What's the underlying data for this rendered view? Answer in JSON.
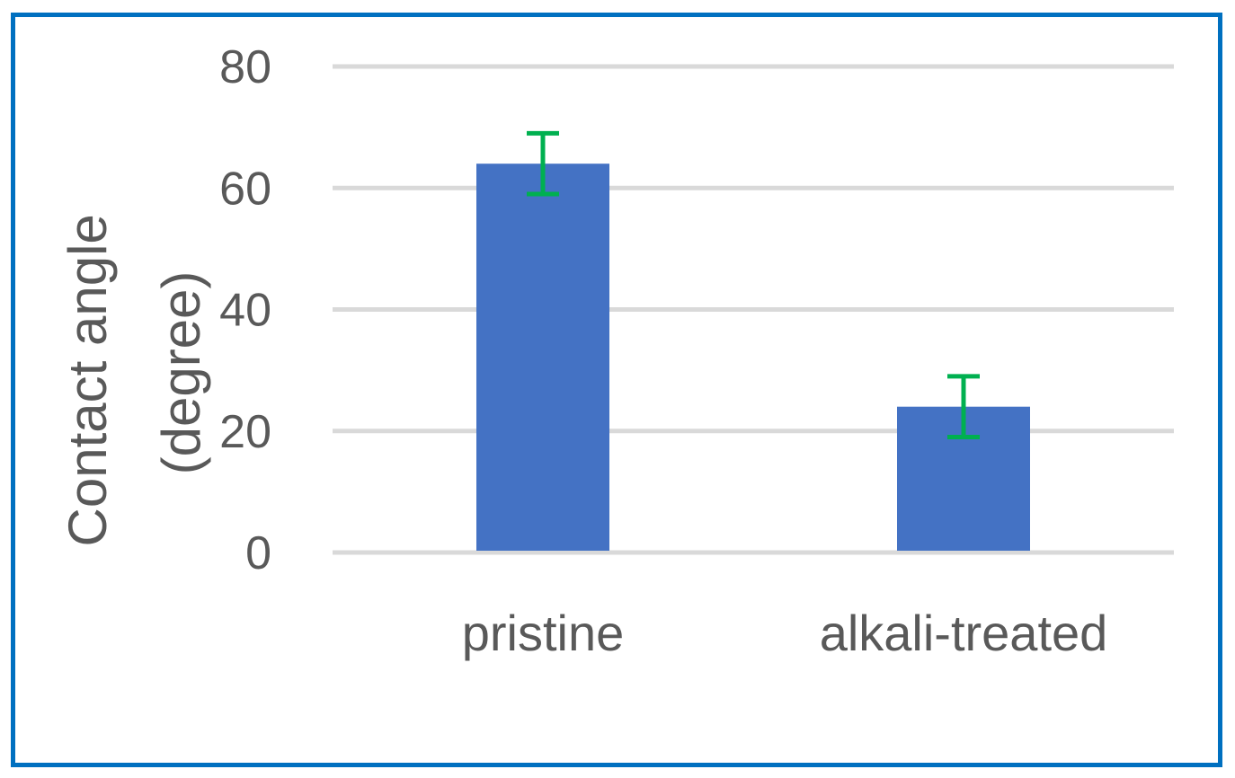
{
  "chart_data": {
    "type": "bar",
    "title": "",
    "xlabel": "",
    "ylabel_lines": [
      "Contact angle",
      "(degree)"
    ],
    "categories": [
      "pristine",
      "alkali-treated"
    ],
    "values": [
      64,
      24
    ],
    "error": [
      5,
      5
    ],
    "ylim": [
      0,
      80
    ],
    "yticks": [
      0,
      20,
      40,
      60,
      80
    ],
    "grid": true,
    "legend": "none",
    "colors": {
      "bar": "#4472c4",
      "error_bar": "#00b050",
      "grid": "#d9d9d9",
      "text": "#595959",
      "frame": "#0070c0"
    }
  }
}
